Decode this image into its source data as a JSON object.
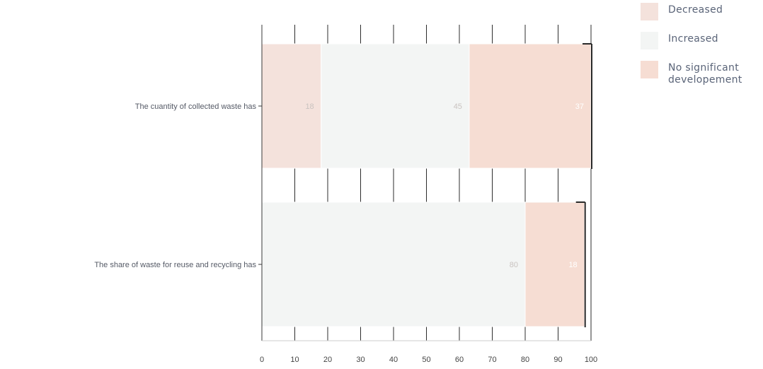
{
  "chart_data": {
    "type": "bar",
    "orientation": "horizontal",
    "stacked": true,
    "title": "",
    "xlabel": "",
    "ylabel": "",
    "xlim": [
      0,
      100
    ],
    "x_ticks": [
      "0",
      "10",
      "20",
      "30",
      "40",
      "50",
      "60",
      "70",
      "80",
      "90",
      "100"
    ],
    "categories": [
      "The cuantity of collected waste has",
      "The share of waste for reuse and recycling has"
    ],
    "series": [
      {
        "name": "Decreased",
        "values": [
          18,
          0
        ],
        "labels": [
          "18",
          ""
        ],
        "color": "#f4e2dc"
      },
      {
        "name": "Increased",
        "values": [
          45,
          80
        ],
        "labels": [
          "45",
          "80"
        ],
        "color": "#f3f5f4"
      },
      {
        "name": "No significant developement",
        "values": [
          37,
          18
        ],
        "labels": [
          "37",
          "18"
        ],
        "color": "#f6ddd3"
      }
    ],
    "grid": true,
    "legend_position": "top-right"
  },
  "colors": {
    "axis": "#3a3a3a",
    "grid": "#2c2c2c",
    "category_label": "#555a66",
    "tick_label": "#444444",
    "inner_label": "#c9c3c0",
    "inner_label_last": "#ffffff"
  }
}
